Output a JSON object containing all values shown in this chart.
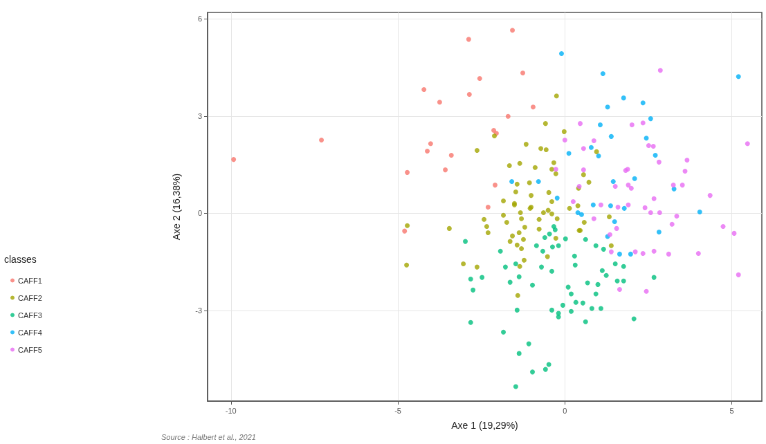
{
  "chart_data": {
    "type": "scatter",
    "xlabel": "Axe 1 (19,29%)",
    "ylabel": "Axe 2 (16,38%)",
    "legend_title": "classes",
    "annotations": [
      "Source : Halbert et al., 2021"
    ],
    "xlim": [
      -10.7,
      5.9
    ],
    "ylim": [
      -5.8,
      6.2
    ],
    "xticks": [
      -10,
      -5,
      0,
      5
    ],
    "yticks": [
      -3,
      0,
      3,
      6
    ],
    "grid": true,
    "legend": "left",
    "marker": "circle",
    "series": [
      {
        "name": "CAFF1",
        "color": "#f8766d",
        "x": [
          -9.92,
          -7.29,
          -2.88,
          -1.57,
          -1.26,
          -4.22,
          -3.75,
          -2.86,
          -2.55,
          -0.95,
          -1.7,
          -2.05,
          -2.13,
          -4.02,
          -4.12,
          -3.4,
          -3.58,
          -4.72,
          -2.09,
          -4.8,
          -2.3
        ],
        "values": [
          1.66,
          2.26,
          5.37,
          5.65,
          4.33,
          3.82,
          3.43,
          3.67,
          4.16,
          3.28,
          2.99,
          2.47,
          2.56,
          2.15,
          1.92,
          1.79,
          1.34,
          1.26,
          0.87,
          -0.55,
          0.19
        ]
      },
      {
        "name": "CAFF2",
        "color": "#a3a500",
        "x": [
          -0.25,
          -0.58,
          -0.02,
          -2.11,
          -2.63,
          -1.16,
          -0.72,
          -0.56,
          -1.66,
          -1.35,
          -0.89,
          -0.33,
          -0.39,
          -0.27,
          -1.43,
          -1.47,
          -1.06,
          -1.01,
          -1.84,
          -1.51,
          -1.01,
          -0.48,
          -0.39,
          0.14,
          -4.72,
          -4.74,
          -3.46,
          -2.42,
          -2.34,
          -2.3,
          -1.84,
          -1.74,
          -1.51,
          -1.33,
          -1.3,
          -1.04,
          -0.77,
          -0.77,
          -1.2,
          -1.37,
          -1.57,
          -1.64,
          -1.43,
          -1.3,
          -1.24,
          -0.64,
          -0.5,
          -0.39,
          -0.23,
          -0.27,
          -0.52,
          -3.04,
          -2.63,
          -1.22,
          -1.35,
          -1.41,
          0.43,
          0.56,
          0.72,
          0.41,
          0.95,
          0.39,
          1.33,
          0.58,
          0.46,
          1.39
        ],
        "values": [
          3.62,
          2.77,
          2.52,
          2.39,
          1.94,
          2.13,
          2.0,
          1.96,
          1.47,
          1.54,
          1.41,
          1.56,
          1.36,
          1.22,
          0.9,
          0.66,
          0.94,
          0.55,
          0.38,
          0.26,
          0.19,
          0.64,
          0.36,
          0.15,
          -0.38,
          -1.6,
          -0.47,
          -0.19,
          -0.41,
          -0.6,
          -0.06,
          -0.28,
          0.3,
          0.02,
          -0.17,
          0.15,
          -0.19,
          -0.49,
          -0.43,
          -0.6,
          -0.7,
          -0.87,
          -0.98,
          -1.09,
          -0.81,
          0.02,
          0.09,
          -0.02,
          -0.17,
          -0.77,
          -1.34,
          -1.56,
          -1.66,
          -1.45,
          -1.64,
          -2.54,
          -0.53,
          1.19,
          0.96,
          0.77,
          1.9,
          0.23,
          -0.11,
          -0.28,
          -0.53,
          -1.0
        ]
      },
      {
        "name": "CAFF3",
        "color": "#00bf7d",
        "x": [
          -2.98,
          -1.93,
          -1.78,
          -1.47,
          -1.37,
          -1.64,
          -2.82,
          -2.48,
          -2.75,
          -0.97,
          -0.7,
          -0.85,
          -0.66,
          -0.6,
          -0.46,
          -0.33,
          -0.29,
          -0.37,
          -0.19,
          0.02,
          -0.39,
          0.29,
          0.31,
          0.1,
          0.19,
          0.33,
          -0.06,
          -0.39,
          -0.19,
          -0.19,
          0.19,
          -1.43,
          -2.82,
          -1.84,
          -1.08,
          -1.37,
          -0.97,
          -0.58,
          -0.48,
          -1.47,
          0.62,
          0.93,
          1.16,
          1.51,
          1.76,
          1.12,
          1.24,
          0.68,
          0.99,
          1.57,
          1.76,
          2.67,
          0.93,
          0.54,
          0.81,
          1.08,
          0.62,
          2.07
        ],
        "values": [
          -0.87,
          -1.17,
          -1.66,
          -1.56,
          -1.96,
          -2.13,
          -2.03,
          -1.98,
          -2.37,
          -2.22,
          -1.66,
          -1.0,
          -1.17,
          -0.75,
          -0.64,
          -0.41,
          -0.51,
          -1.04,
          -1.0,
          -0.79,
          -1.79,
          -1.32,
          -1.6,
          -2.28,
          -2.49,
          -2.75,
          -2.84,
          -2.99,
          -3.09,
          -3.2,
          -3.03,
          -2.99,
          -3.37,
          -3.67,
          -4.03,
          -4.33,
          -4.9,
          -4.82,
          -4.67,
          -5.35,
          -0.81,
          -1.0,
          -1.11,
          -1.56,
          -1.64,
          -1.77,
          -1.92,
          -2.15,
          -2.2,
          -2.09,
          -2.09,
          -1.98,
          -2.49,
          -2.77,
          -2.94,
          -2.94,
          -3.35,
          -3.26
        ]
      },
      {
        "name": "CAFF4",
        "color": "#00b0f6",
        "x": [
          -0.1,
          0.12,
          -1.59,
          -0.79,
          -0.23,
          1.14,
          5.2,
          1.76,
          2.34,
          1.28,
          2.57,
          1.06,
          1.39,
          2.44,
          0.79,
          1.01,
          2.71,
          2.09,
          1.45,
          3.27,
          0.85,
          1.37,
          1.78,
          0.39,
          0.5,
          1.49,
          4.04,
          2.82,
          1.28,
          1.64,
          1.97
        ],
        "values": [
          4.93,
          1.85,
          0.98,
          0.98,
          0.47,
          4.31,
          4.22,
          3.56,
          3.41,
          3.28,
          2.92,
          2.73,
          2.37,
          2.32,
          2.03,
          1.77,
          1.79,
          1.07,
          0.98,
          0.75,
          0.26,
          0.23,
          0.15,
          0.02,
          -0.04,
          -0.26,
          0.04,
          -0.58,
          -0.72,
          -1.26,
          -1.26
        ]
      },
      {
        "name": "CAFF5",
        "color": "#e76bf3",
        "x": [
          2.86,
          5.47,
          0.46,
          2.01,
          2.34,
          0.87,
          0.56,
          2.51,
          2.65,
          2.82,
          3.66,
          3.6,
          0.56,
          1.82,
          1.88,
          1.51,
          1.9,
          1.99,
          3.25,
          3.52,
          4.35,
          2.67,
          1.08,
          1.59,
          1.9,
          2.4,
          0.0,
          -0.27,
          0.25,
          0.43,
          2.57,
          2.84,
          3.35,
          3.21,
          0.87,
          1.55,
          1.35,
          1.39,
          2.11,
          2.34,
          2.67,
          3.11,
          4.0,
          4.74,
          5.07,
          5.2,
          1.64,
          2.44
        ],
        "values": [
          4.41,
          2.15,
          2.77,
          2.73,
          2.79,
          2.24,
          2.0,
          2.09,
          2.07,
          1.58,
          1.64,
          1.3,
          1.34,
          1.32,
          1.36,
          0.83,
          0.87,
          0.77,
          0.87,
          0.87,
          0.55,
          0.45,
          0.26,
          0.19,
          0.26,
          0.17,
          2.26,
          1.36,
          0.36,
          0.83,
          0.02,
          0.02,
          -0.09,
          -0.34,
          -0.17,
          -0.47,
          -0.66,
          -1.19,
          -1.19,
          -1.24,
          -1.17,
          -1.26,
          -1.24,
          -0.41,
          -0.62,
          -1.9,
          -2.35,
          -2.41
        ]
      }
    ]
  }
}
